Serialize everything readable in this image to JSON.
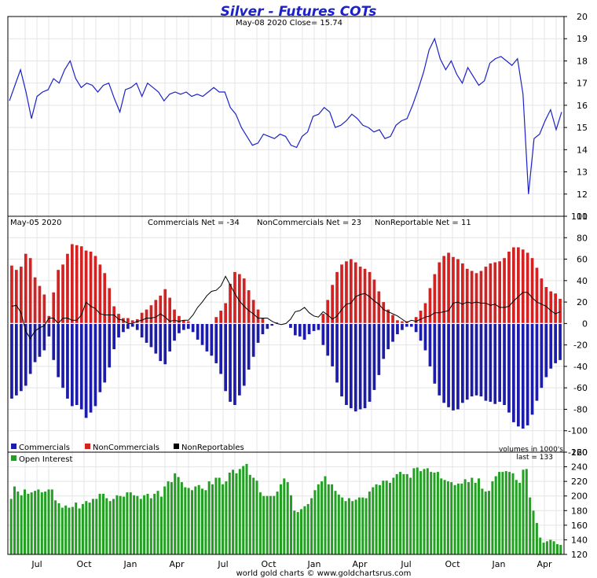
{
  "header": {
    "title": "Silver - Futures COTs",
    "price_info": "May-08  2020   Close= 15.74",
    "cot_date": "May-05  2020",
    "comm_net": "Commercials Net = -34",
    "noncomm_net": "NonCommercials Net = 23",
    "nonrep_net": "NonReportable Net = 11",
    "volume_note": "volumes in 1000's",
    "last_oi": "last = 133",
    "footer": "world gold charts © www.goldchartsrus.com"
  },
  "legend": {
    "commercials": "Commercials",
    "noncommercials": "NonCommercials",
    "nonreportables": "NonReportables",
    "open_interest": "Open Interest"
  },
  "colors": {
    "price": "#1c22c8",
    "commercials": "#1c1ca8",
    "noncommercials": "#d22222",
    "nonreportables": "#000000",
    "open_interest": "#22a022",
    "grid": "#e4e4e4"
  },
  "chart_data": [
    {
      "type": "line",
      "title": "Silver - Futures COTs",
      "subtitle": "May-08  2020   Close= 15.74",
      "ylim": [
        11,
        20
      ],
      "yticks": [
        11,
        12,
        13,
        14,
        15,
        16,
        17,
        18,
        19,
        20
      ],
      "xticks": [
        "Jul",
        "Oct",
        "Jan",
        "Apr",
        "Jul",
        "Oct",
        "Jan",
        "Apr",
        "Jul",
        "Oct",
        "Jan",
        "Apr"
      ],
      "x_range": [
        "2017-05",
        "2020-05"
      ],
      "series": [
        {
          "values": [
            16.2,
            16.9,
            17.6,
            16.6,
            15.4,
            16.4,
            16.6,
            16.7,
            17.2,
            17.0,
            17.6,
            18.0,
            17.2,
            16.8,
            17.0,
            16.9,
            16.6,
            16.9,
            17.0,
            16.3,
            15.7,
            16.7,
            16.8,
            17.0,
            16.4,
            17.0,
            16.8,
            16.6,
            16.2,
            16.5,
            16.6,
            16.5,
            16.6,
            16.4,
            16.5,
            16.4,
            16.6,
            16.8,
            16.6,
            16.6,
            15.9,
            15.6,
            15.0,
            14.6,
            14.2,
            14.3,
            14.7,
            14.6,
            14.5,
            14.7,
            14.6,
            14.2,
            14.1,
            14.6,
            14.8,
            15.5,
            15.6,
            15.9,
            15.7,
            15.0,
            15.1,
            15.3,
            15.6,
            15.4,
            15.1,
            15.0,
            14.8,
            14.9,
            14.5,
            14.6,
            15.1,
            15.3,
            15.4,
            16.0,
            16.7,
            17.5,
            18.5,
            19.0,
            18.1,
            17.6,
            18.0,
            17.4,
            17.0,
            17.7,
            17.3,
            16.9,
            17.1,
            17.9,
            18.1,
            18.2,
            18.0,
            17.8,
            18.1,
            16.5,
            12.0,
            14.5,
            14.7,
            15.3,
            15.8,
            14.9,
            15.7
          ]
        }
      ]
    },
    {
      "type": "bar",
      "title": "",
      "ylim": [
        -120,
        100
      ],
      "yticks": [
        -120,
        -100,
        -80,
        -60,
        -40,
        -20,
        0,
        20,
        40,
        60,
        80,
        100
      ],
      "series": [
        {
          "name": "Commercials",
          "values": [
            -70,
            -67,
            -63,
            -58,
            -47,
            -36,
            -31,
            -25,
            -12,
            -34,
            -50,
            -60,
            -70,
            -77,
            -76,
            -80,
            -88,
            -83,
            -77,
            -64,
            -55,
            -41,
            -24,
            -13,
            -8,
            -5,
            -3,
            -6,
            -13,
            -18,
            -22,
            -28,
            -35,
            -38,
            -26,
            -16,
            -9,
            -6,
            -5,
            -8,
            -15,
            -20,
            -26,
            -30,
            -37,
            -47,
            -63,
            -73,
            -76,
            -67,
            -58,
            -43,
            -31,
            -18,
            -10,
            -5,
            -2,
            1,
            0,
            0,
            -4,
            -11,
            -12,
            -15,
            -10,
            -7,
            -6,
            -20,
            -30,
            -40,
            -55,
            -68,
            -76,
            -79,
            -82,
            -80,
            -79,
            -73,
            -62,
            -48,
            -33,
            -24,
            -17,
            -10,
            -6,
            -3,
            -3,
            -8,
            -16,
            -25,
            -40,
            -56,
            -67,
            -74,
            -78,
            -81,
            -80,
            -74,
            -71,
            -68,
            -67,
            -68,
            -72,
            -73,
            -75,
            -73,
            -76,
            -83,
            -92,
            -96,
            -98,
            -95,
            -85,
            -72,
            -60,
            -50,
            -42,
            -37,
            -34
          ]
        },
        {
          "name": "NonCommercials",
          "values": [
            54,
            50,
            53,
            65,
            61,
            43,
            35,
            27,
            7,
            29,
            50,
            55,
            65,
            74,
            73,
            72,
            68,
            67,
            63,
            55,
            47,
            33,
            16,
            9,
            5,
            5,
            3,
            4,
            10,
            13,
            17,
            22,
            26,
            32,
            24,
            13,
            7,
            3,
            2,
            0,
            0,
            0,
            0,
            0,
            6,
            12,
            19,
            37,
            48,
            46,
            42,
            31,
            22,
            13,
            5,
            0,
            0,
            0,
            0,
            0,
            0,
            0,
            0,
            0,
            0,
            0,
            0,
            9,
            22,
            36,
            48,
            55,
            58,
            60,
            57,
            53,
            51,
            48,
            41,
            30,
            20,
            13,
            8,
            3,
            2,
            2,
            0,
            6,
            12,
            19,
            33,
            46,
            57,
            63,
            66,
            62,
            60,
            56,
            51,
            49,
            47,
            49,
            53,
            56,
            57,
            58,
            61,
            67,
            71,
            71,
            69,
            66,
            61,
            52,
            42,
            34,
            30,
            28,
            23
          ]
        },
        {
          "name": "NonReportables",
          "values": [
            16,
            17,
            10,
            -7,
            -14,
            -7,
            -4,
            -2,
            5,
            5,
            0,
            5,
            5,
            3,
            3,
            8,
            20,
            16,
            14,
            9,
            8,
            8,
            8,
            4,
            3,
            0,
            0,
            2,
            3,
            5,
            5,
            6,
            9,
            6,
            2,
            3,
            2,
            3,
            3,
            8,
            15,
            20,
            26,
            30,
            31,
            35,
            44,
            36,
            28,
            21,
            16,
            12,
            9,
            5,
            5,
            5,
            2,
            0,
            -1,
            0,
            4,
            11,
            12,
            15,
            10,
            7,
            6,
            11,
            8,
            4,
            7,
            13,
            18,
            19,
            25,
            27,
            28,
            25,
            21,
            18,
            13,
            11,
            9,
            7,
            4,
            1,
            3,
            2,
            4,
            6,
            7,
            10,
            10,
            11,
            12,
            19,
            20,
            18,
            20,
            19,
            20,
            19,
            19,
            17,
            18,
            15,
            15,
            16,
            21,
            25,
            29,
            29,
            24,
            20,
            18,
            16,
            12,
            9,
            11
          ]
        }
      ]
    },
    {
      "type": "bar",
      "title": "",
      "ylabel": "volumes in 1000's",
      "ylim": [
        120,
        260
      ],
      "yticks": [
        120,
        140,
        160,
        180,
        200,
        220,
        240,
        260
      ],
      "series": [
        {
          "name": "Open Interest",
          "values": [
            196,
            213,
            206,
            201,
            209,
            203,
            205,
            207,
            209,
            205,
            206,
            209,
            209,
            194,
            190,
            184,
            187,
            184,
            185,
            191,
            183,
            189,
            193,
            191,
            196,
            196,
            203,
            203,
            197,
            193,
            196,
            201,
            200,
            199,
            205,
            205,
            201,
            200,
            196,
            201,
            203,
            197,
            203,
            207,
            199,
            213,
            220,
            219,
            231,
            226,
            219,
            212,
            211,
            208,
            213,
            215,
            210,
            208,
            220,
            216,
            225,
            225,
            216,
            220,
            232,
            236,
            231,
            237,
            241,
            244,
            229,
            225,
            221,
            205,
            200,
            200,
            200,
            200,
            206,
            216,
            224,
            219,
            201,
            180,
            178,
            182,
            186,
            189,
            197,
            208,
            216,
            220,
            227,
            216,
            216,
            207,
            202,
            198,
            193,
            197,
            193,
            195,
            198,
            198,
            197,
            206,
            212,
            216,
            215,
            221,
            221,
            218,
            225,
            230,
            233,
            230,
            230,
            225,
            238,
            239,
            234,
            237,
            238,
            233,
            232,
            233,
            224,
            222,
            220,
            219,
            215,
            217,
            217,
            223,
            219,
            225,
            218,
            224,
            210,
            206,
            207,
            220,
            227,
            233,
            233,
            234,
            233,
            231,
            222,
            218,
            236,
            237,
            198,
            180,
            163,
            143,
            136,
            138,
            140,
            138,
            134,
            133
          ]
        }
      ]
    }
  ]
}
